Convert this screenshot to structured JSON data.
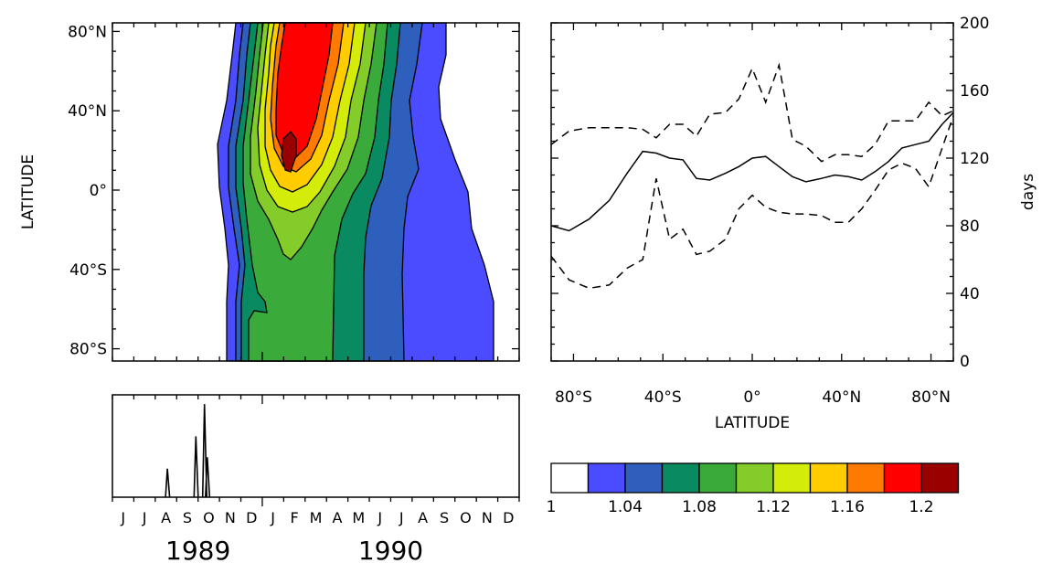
{
  "chart_data": [
    {
      "type": "heatmap",
      "title": "",
      "ylabel": "LATITUDE",
      "ytick_labels": [
        "80°N",
        "40°N",
        "0°",
        "40°S",
        "80°S"
      ],
      "ytick_values": [
        80,
        40,
        0,
        -40,
        -80
      ],
      "x_range": [
        "1989-06",
        "1990-12"
      ],
      "color_levels": [
        1,
        1.02,
        1.04,
        1.06,
        1.08,
        1.1,
        1.12,
        1.14,
        1.16,
        1.18,
        1.2,
        1.22
      ],
      "colors": [
        "#ffffff",
        "#4b4bff",
        "#2e5fbd",
        "#0a8a60",
        "#3aaa3a",
        "#84cc2a",
        "#d4ec0a",
        "#ffcc00",
        "#ff7a00",
        "#ff0000",
        "#990000"
      ],
      "peak": {
        "time": "1990-02",
        "lat": 20,
        "value": 1.22
      }
    },
    {
      "type": "line",
      "xlabel": "LATITUDE",
      "ylabel": "days",
      "xtick_labels": [
        "80°S",
        "40°S",
        "0°",
        "40°N",
        "80°N"
      ],
      "xtick_values": [
        -80,
        -40,
        0,
        40,
        80
      ],
      "ytick_labels": [
        "0",
        "40",
        "80",
        "120",
        "160",
        "200"
      ],
      "ytick_values": [
        0,
        40,
        80,
        120,
        160,
        200
      ],
      "xlim": [
        -90,
        90
      ],
      "ylim": [
        0,
        200
      ],
      "x": [
        -90,
        -82,
        -73,
        -64,
        -56,
        -49,
        -43,
        -37,
        -31,
        -25,
        -19,
        -12,
        -6,
        0,
        6,
        12,
        18,
        24,
        31,
        37,
        43,
        49,
        55,
        61,
        67,
        73,
        79,
        85,
        90
      ],
      "series": [
        {
          "style": "solid",
          "values": [
            80,
            77,
            84,
            95,
            111,
            124,
            123,
            120,
            119,
            108,
            107,
            111,
            115,
            120,
            121,
            115,
            109,
            106,
            108,
            110,
            109,
            107,
            112,
            118,
            126,
            128,
            130,
            140,
            147
          ]
        },
        {
          "style": "dashed",
          "values": [
            128,
            136,
            138,
            138,
            138,
            137,
            132,
            140,
            140,
            133,
            146,
            147,
            155,
            173,
            153,
            175,
            131,
            127,
            118,
            122,
            122,
            121,
            128,
            142,
            142,
            142,
            153,
            145,
            148
          ]
        },
        {
          "style": "dashed",
          "values": [
            62,
            48,
            43,
            45,
            55,
            60,
            108,
            72,
            78,
            63,
            65,
            72,
            90,
            98,
            91,
            88,
            87,
            87,
            86,
            82,
            82,
            90,
            101,
            113,
            117,
            114,
            103,
            126,
            145
          ]
        }
      ]
    },
    {
      "type": "line",
      "title": "",
      "xtick_labels": [
        "J",
        "J",
        "A",
        "S",
        "O",
        "N",
        "D",
        "J",
        "F",
        "M",
        "A",
        "M",
        "J",
        "J",
        "A",
        "S",
        "O",
        "N",
        "D"
      ],
      "year_labels": [
        "1989",
        "1990"
      ],
      "spikes": [
        {
          "date": "1989-08-18",
          "value": 0.3
        },
        {
          "date": "1989-09-28",
          "value": 0.64
        },
        {
          "date": "1989-10-10",
          "value": 0.98
        },
        {
          "date": "1989-10-14",
          "value": 0.42
        }
      ]
    },
    {
      "type": "colorbar",
      "tick_labels": [
        "1",
        "1.04",
        "1.08",
        "1.12",
        "1.16",
        "1.2"
      ]
    }
  ]
}
